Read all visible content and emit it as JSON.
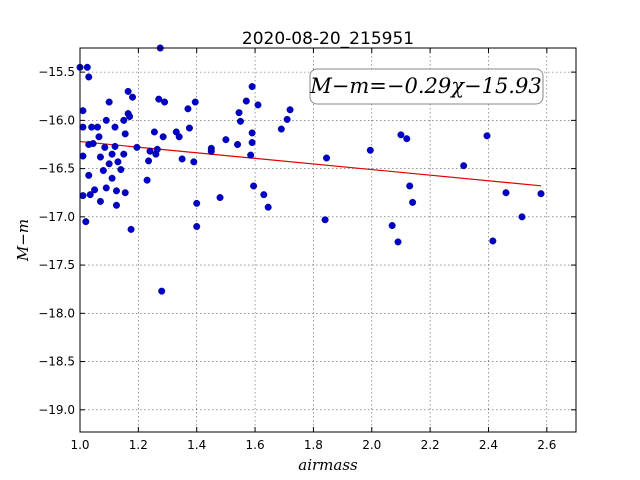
{
  "chart_data": {
    "type": "scatter",
    "title": "2020-08-20_215951",
    "xlabel": "airmass",
    "ylabel": "M−m",
    "xlim": [
      1.0,
      2.7
    ],
    "ylim": [
      -19.23,
      -15.25
    ],
    "y_inverted": true,
    "grid": true,
    "x_ticks": [
      "1.0",
      "1.2",
      "1.4",
      "1.6",
      "1.8",
      "2.0",
      "2.2",
      "2.4",
      "2.6"
    ],
    "y_ticks": [
      "−15.5",
      "−16.0",
      "−16.5",
      "−17.0",
      "−17.5",
      "−18.0",
      "−18.5",
      "−19.0"
    ],
    "annotation": "M−m=−0.29χ−15.93",
    "annotation_position": "top-right",
    "point_color": "#0000c8",
    "fit_color": "#e00000",
    "fit": {
      "slope": -0.29,
      "intercept": -15.93,
      "x_range": [
        1.0,
        2.58
      ]
    },
    "points": [
      [
        1.0,
        -15.45
      ],
      [
        1.01,
        -15.9
      ],
      [
        1.01,
        -16.07
      ],
      [
        1.01,
        -16.37
      ],
      [
        1.01,
        -16.78
      ],
      [
        1.02,
        -17.05
      ],
      [
        1.025,
        -15.45
      ],
      [
        1.03,
        -15.55
      ],
      [
        1.03,
        -16.25
      ],
      [
        1.03,
        -16.57
      ],
      [
        1.035,
        -16.77
      ],
      [
        1.04,
        -16.07
      ],
      [
        1.045,
        -16.24
      ],
      [
        1.05,
        -16.72
      ],
      [
        1.06,
        -16.07
      ],
      [
        1.065,
        -16.17
      ],
      [
        1.07,
        -16.38
      ],
      [
        1.07,
        -16.84
      ],
      [
        1.08,
        -16.52
      ],
      [
        1.085,
        -16.28
      ],
      [
        1.09,
        -16.0
      ],
      [
        1.09,
        -16.7
      ],
      [
        1.1,
        -16.45
      ],
      [
        1.1,
        -15.81
      ],
      [
        1.11,
        -16.35
      ],
      [
        1.11,
        -16.6
      ],
      [
        1.12,
        -16.27
      ],
      [
        1.12,
        -16.07
      ],
      [
        1.125,
        -16.73
      ],
      [
        1.125,
        -16.88
      ],
      [
        1.13,
        -16.43
      ],
      [
        1.14,
        -16.51
      ],
      [
        1.15,
        -16.0
      ],
      [
        1.15,
        -16.35
      ],
      [
        1.155,
        -16.75
      ],
      [
        1.155,
        -16.14
      ],
      [
        1.165,
        -15.7
      ],
      [
        1.165,
        -15.93
      ],
      [
        1.17,
        -15.96
      ],
      [
        1.175,
        -17.13
      ],
      [
        1.18,
        -15.76
      ],
      [
        1.195,
        -16.28
      ],
      [
        1.23,
        -16.62
      ],
      [
        1.235,
        -16.42
      ],
      [
        1.24,
        -16.32
      ],
      [
        1.255,
        -16.12
      ],
      [
        1.26,
        -16.35
      ],
      [
        1.265,
        -16.3
      ],
      [
        1.27,
        -15.78
      ],
      [
        1.275,
        -15.25
      ],
      [
        1.28,
        -17.77
      ],
      [
        1.285,
        -16.17
      ],
      [
        1.29,
        -15.81
      ],
      [
        1.33,
        -16.12
      ],
      [
        1.34,
        -16.17
      ],
      [
        1.35,
        -16.4
      ],
      [
        1.37,
        -15.88
      ],
      [
        1.375,
        -16.08
      ],
      [
        1.39,
        -16.43
      ],
      [
        1.395,
        -15.81
      ],
      [
        1.4,
        -17.1
      ],
      [
        1.4,
        -16.86
      ],
      [
        1.45,
        -16.29
      ],
      [
        1.45,
        -16.32
      ],
      [
        1.48,
        -16.8
      ],
      [
        1.5,
        -16.2
      ],
      [
        1.54,
        -16.25
      ],
      [
        1.545,
        -15.92
      ],
      [
        1.55,
        -16.01
      ],
      [
        1.57,
        -15.8
      ],
      [
        1.585,
        -16.36
      ],
      [
        1.59,
        -16.23
      ],
      [
        1.59,
        -16.13
      ],
      [
        1.59,
        -15.65
      ],
      [
        1.595,
        -16.68
      ],
      [
        1.61,
        -15.84
      ],
      [
        1.63,
        -16.77
      ],
      [
        1.645,
        -16.9
      ],
      [
        1.69,
        -16.09
      ],
      [
        1.71,
        -15.99
      ],
      [
        1.72,
        -15.89
      ],
      [
        1.84,
        -17.03
      ],
      [
        1.845,
        -16.39
      ],
      [
        1.995,
        -16.31
      ],
      [
        2.07,
        -17.09
      ],
      [
        2.09,
        -17.26
      ],
      [
        2.1,
        -16.15
      ],
      [
        2.12,
        -16.19
      ],
      [
        2.13,
        -16.68
      ],
      [
        2.14,
        -16.85
      ],
      [
        2.315,
        -16.47
      ],
      [
        2.395,
        -16.16
      ],
      [
        2.415,
        -17.25
      ],
      [
        2.46,
        -16.75
      ],
      [
        2.515,
        -17.0
      ],
      [
        2.58,
        -16.76
      ]
    ]
  }
}
